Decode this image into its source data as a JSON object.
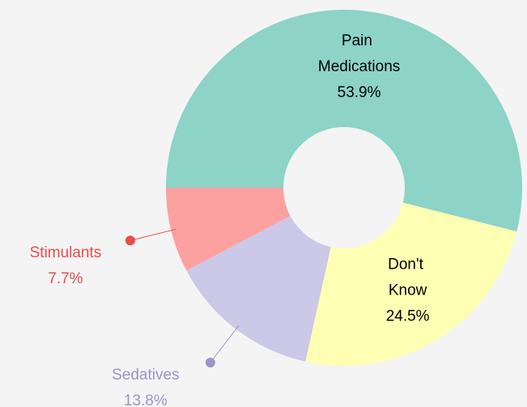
{
  "chart_data": {
    "type": "donut",
    "categories": [
      "Pain Medications",
      "Don't Know",
      "Sedatives",
      "Stimulants"
    ],
    "values": [
      53.9,
      24.5,
      13.8,
      7.7
    ],
    "value_labels": [
      "53.9%",
      "24.5%",
      "13.8%",
      "7.7%"
    ],
    "colors": [
      "#8dd3c7",
      "#ffffb3",
      "#cbc8e8",
      "#fda0a0"
    ],
    "label_colors": [
      "#000000",
      "#000000",
      "#9c94c8",
      "#f04a4a"
    ]
  }
}
